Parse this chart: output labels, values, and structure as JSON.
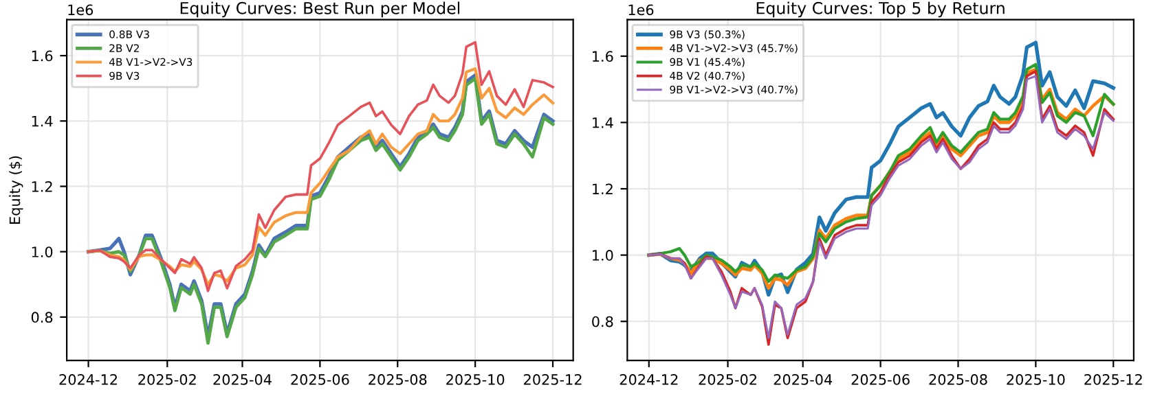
{
  "chart_data": [
    {
      "type": "line",
      "title": "Equity Curves: Best Run per Model",
      "ylabel": "Equity ($)",
      "annotations": [
        "1e6"
      ],
      "grid": true,
      "legend": "top left",
      "x": [
        "2024-12-01",
        "2024-12-10",
        "2024-12-18",
        "2024-12-25",
        "2024-12-29",
        "2025-01-03",
        "2025-01-10",
        "2025-01-15",
        "2025-01-20",
        "2025-01-27",
        "2025-02-03",
        "2025-02-07",
        "2025-02-12",
        "2025-02-19",
        "2025-02-22",
        "2025-02-28",
        "2025-03-05",
        "2025-03-10",
        "2025-03-15",
        "2025-03-20",
        "2025-03-27",
        "2025-04-03",
        "2025-04-09",
        "2025-04-14",
        "2025-04-19",
        "2025-04-26",
        "2025-05-05",
        "2025-05-13",
        "2025-05-22",
        "2025-05-25",
        "2025-06-01",
        "2025-06-08",
        "2025-06-15",
        "2025-06-24",
        "2025-07-03",
        "2025-07-10",
        "2025-07-15",
        "2025-07-20",
        "2025-07-27",
        "2025-08-03",
        "2025-08-10",
        "2025-08-17",
        "2025-08-24",
        "2025-08-29",
        "2025-09-03",
        "2025-09-10",
        "2025-09-15",
        "2025-09-21",
        "2025-09-24",
        "2025-10-01",
        "2025-10-06",
        "2025-10-12",
        "2025-10-18",
        "2025-10-25",
        "2025-11-01",
        "2025-11-08",
        "2025-11-15",
        "2025-11-24",
        "2025-12-01"
      ],
      "xlim": [
        "2024-11-14",
        "2025-12-17"
      ],
      "xticks": [
        {
          "value": "2024-12-01",
          "label": "2024-12"
        },
        {
          "value": "2025-02-01",
          "label": "2025-02"
        },
        {
          "value": "2025-04-01",
          "label": "2025-04"
        },
        {
          "value": "2025-06-01",
          "label": "2025-06"
        },
        {
          "value": "2025-08-01",
          "label": "2025-08"
        },
        {
          "value": "2025-10-01",
          "label": "2025-10"
        },
        {
          "value": "2025-12-01",
          "label": "2025-12"
        }
      ],
      "ylim": [
        0.667,
        1.71
      ],
      "yticks": [
        {
          "value": 0.8,
          "label": "0.8"
        },
        {
          "value": 1.0,
          "label": "1.0"
        },
        {
          "value": 1.2,
          "label": "1.2"
        },
        {
          "value": 1.4,
          "label": "1.4"
        },
        {
          "value": 1.6,
          "label": "1.6"
        }
      ],
      "series": [
        {
          "name": "0.8B V3",
          "color": "#4a72b8",
          "values": [
            1.0,
            1.005,
            1.01,
            1.04,
            1.0,
            0.93,
            0.99,
            1.05,
            1.05,
            0.98,
            0.9,
            0.83,
            0.9,
            0.88,
            0.91,
            0.85,
            0.74,
            0.84,
            0.84,
            0.75,
            0.84,
            0.87,
            0.94,
            1.02,
            0.99,
            1.04,
            1.06,
            1.08,
            1.08,
            1.17,
            1.18,
            1.23,
            1.29,
            1.32,
            1.35,
            1.36,
            1.32,
            1.34,
            1.3,
            1.26,
            1.3,
            1.35,
            1.37,
            1.39,
            1.36,
            1.35,
            1.38,
            1.43,
            1.52,
            1.54,
            1.4,
            1.43,
            1.34,
            1.33,
            1.37,
            1.34,
            1.32,
            1.42,
            1.4
          ]
        },
        {
          "name": "2B V2",
          "color": "#55a84a",
          "values": [
            1.0,
            1.003,
            0.995,
            1.0,
            0.99,
            0.94,
            0.99,
            1.04,
            1.04,
            0.97,
            0.89,
            0.82,
            0.89,
            0.87,
            0.9,
            0.84,
            0.72,
            0.83,
            0.83,
            0.74,
            0.83,
            0.86,
            0.93,
            1.01,
            0.985,
            1.03,
            1.05,
            1.07,
            1.07,
            1.16,
            1.17,
            1.22,
            1.28,
            1.31,
            1.34,
            1.35,
            1.31,
            1.33,
            1.29,
            1.25,
            1.29,
            1.34,
            1.36,
            1.38,
            1.35,
            1.34,
            1.37,
            1.42,
            1.51,
            1.53,
            1.39,
            1.42,
            1.33,
            1.32,
            1.36,
            1.33,
            1.29,
            1.41,
            1.39
          ]
        },
        {
          "name": "4B V1->V2->V3",
          "color": "#f99b3a",
          "values": [
            1.0,
            1.003,
            0.99,
            0.985,
            0.975,
            0.945,
            0.985,
            0.99,
            0.99,
            0.975,
            0.955,
            0.94,
            0.96,
            0.955,
            0.97,
            0.945,
            0.9,
            0.93,
            0.925,
            0.91,
            0.95,
            0.96,
            0.99,
            1.075,
            1.05,
            1.09,
            1.11,
            1.12,
            1.12,
            1.18,
            1.21,
            1.25,
            1.29,
            1.31,
            1.35,
            1.37,
            1.33,
            1.36,
            1.32,
            1.3,
            1.33,
            1.36,
            1.37,
            1.42,
            1.4,
            1.4,
            1.42,
            1.47,
            1.55,
            1.56,
            1.47,
            1.5,
            1.43,
            1.41,
            1.44,
            1.42,
            1.45,
            1.48,
            1.455
          ]
        },
        {
          "name": "9B V3",
          "color": "#e5525a",
          "values": [
            1.0,
            1.004,
            0.984,
            0.98,
            0.97,
            0.95,
            0.99,
            1.005,
            1.005,
            0.977,
            0.95,
            0.935,
            0.977,
            0.963,
            0.983,
            0.95,
            0.88,
            0.935,
            0.942,
            0.888,
            0.956,
            0.977,
            1.004,
            1.114,
            1.073,
            1.127,
            1.168,
            1.175,
            1.175,
            1.264,
            1.285,
            1.333,
            1.388,
            1.415,
            1.443,
            1.456,
            1.415,
            1.429,
            1.388,
            1.36,
            1.415,
            1.45,
            1.463,
            1.511,
            1.477,
            1.456,
            1.477,
            1.545,
            1.627,
            1.641,
            1.511,
            1.552,
            1.477,
            1.45,
            1.497,
            1.443,
            1.525,
            1.518,
            1.504
          ]
        }
      ]
    },
    {
      "type": "line",
      "title": "Equity Curves: Top 5 by Return",
      "annotations": [
        "1e6"
      ],
      "grid": true,
      "legend": "top left",
      "x": [
        "2024-12-01",
        "2024-12-10",
        "2024-12-18",
        "2024-12-25",
        "2024-12-29",
        "2025-01-03",
        "2025-01-10",
        "2025-01-15",
        "2025-01-20",
        "2025-01-27",
        "2025-02-03",
        "2025-02-07",
        "2025-02-12",
        "2025-02-19",
        "2025-02-22",
        "2025-02-28",
        "2025-03-05",
        "2025-03-10",
        "2025-03-15",
        "2025-03-20",
        "2025-03-27",
        "2025-04-03",
        "2025-04-09",
        "2025-04-14",
        "2025-04-19",
        "2025-04-26",
        "2025-05-05",
        "2025-05-13",
        "2025-05-22",
        "2025-05-25",
        "2025-06-01",
        "2025-06-08",
        "2025-06-15",
        "2025-06-24",
        "2025-07-03",
        "2025-07-10",
        "2025-07-15",
        "2025-07-20",
        "2025-07-27",
        "2025-08-03",
        "2025-08-10",
        "2025-08-17",
        "2025-08-24",
        "2025-08-29",
        "2025-09-03",
        "2025-09-10",
        "2025-09-15",
        "2025-09-21",
        "2025-09-24",
        "2025-10-01",
        "2025-10-06",
        "2025-10-12",
        "2025-10-18",
        "2025-10-25",
        "2025-11-01",
        "2025-11-08",
        "2025-11-15",
        "2025-11-24",
        "2025-12-01"
      ],
      "xlim": [
        "2024-11-14",
        "2025-12-17"
      ],
      "xticks": [
        {
          "value": "2024-12-01",
          "label": "2024-12"
        },
        {
          "value": "2025-02-01",
          "label": "2025-02"
        },
        {
          "value": "2025-04-01",
          "label": "2025-04"
        },
        {
          "value": "2025-06-01",
          "label": "2025-06"
        },
        {
          "value": "2025-08-01",
          "label": "2025-08"
        },
        {
          "value": "2025-10-01",
          "label": "2025-10"
        },
        {
          "value": "2025-12-01",
          "label": "2025-12"
        }
      ],
      "ylim": [
        0.682,
        1.71
      ],
      "yticks": [
        {
          "value": 0.8,
          "label": "0.8"
        },
        {
          "value": 1.0,
          "label": "1.0"
        },
        {
          "value": 1.2,
          "label": "1.2"
        },
        {
          "value": 1.4,
          "label": "1.4"
        },
        {
          "value": 1.6,
          "label": "1.6"
        }
      ],
      "series": [
        {
          "name": "9B V3 (50.3%)",
          "color": "#1f77b4",
          "values": [
            1.0,
            1.004,
            0.984,
            0.98,
            0.97,
            0.95,
            0.99,
            1.005,
            1.005,
            0.977,
            0.95,
            0.935,
            0.977,
            0.963,
            0.983,
            0.95,
            0.88,
            0.935,
            0.942,
            0.888,
            0.956,
            0.977,
            1.004,
            1.114,
            1.073,
            1.127,
            1.168,
            1.175,
            1.175,
            1.264,
            1.285,
            1.333,
            1.388,
            1.415,
            1.443,
            1.456,
            1.415,
            1.429,
            1.388,
            1.36,
            1.415,
            1.45,
            1.463,
            1.511,
            1.477,
            1.456,
            1.477,
            1.545,
            1.627,
            1.641,
            1.511,
            1.552,
            1.477,
            1.45,
            1.497,
            1.443,
            1.525,
            1.518,
            1.504
          ]
        },
        {
          "name": "4B V1->V2->V3 (45.7%)",
          "color": "#ff7f0e",
          "values": [
            1.0,
            1.003,
            0.99,
            0.985,
            0.975,
            0.945,
            0.985,
            0.99,
            0.99,
            0.975,
            0.955,
            0.94,
            0.96,
            0.955,
            0.97,
            0.945,
            0.9,
            0.93,
            0.925,
            0.91,
            0.95,
            0.96,
            0.99,
            1.075,
            1.05,
            1.09,
            1.11,
            1.12,
            1.12,
            1.18,
            1.21,
            1.25,
            1.29,
            1.31,
            1.35,
            1.37,
            1.33,
            1.36,
            1.32,
            1.3,
            1.33,
            1.36,
            1.37,
            1.42,
            1.4,
            1.4,
            1.42,
            1.47,
            1.55,
            1.56,
            1.47,
            1.5,
            1.43,
            1.41,
            1.44,
            1.42,
            1.45,
            1.48,
            1.455
          ]
        },
        {
          "name": "9B V1 (45.4%)",
          "color": "#2ca02c",
          "values": [
            1.0,
            1.005,
            1.01,
            1.02,
            1.0,
            0.965,
            0.98,
            1.0,
            0.995,
            0.985,
            0.965,
            0.95,
            0.97,
            0.965,
            0.975,
            0.955,
            0.92,
            0.94,
            0.935,
            0.93,
            0.955,
            0.965,
            0.995,
            1.065,
            1.04,
            1.08,
            1.1,
            1.11,
            1.115,
            1.18,
            1.21,
            1.25,
            1.3,
            1.32,
            1.36,
            1.385,
            1.34,
            1.37,
            1.33,
            1.31,
            1.34,
            1.37,
            1.38,
            1.43,
            1.41,
            1.41,
            1.43,
            1.48,
            1.56,
            1.575,
            1.46,
            1.49,
            1.42,
            1.4,
            1.43,
            1.42,
            1.36,
            1.485,
            1.455
          ]
        },
        {
          "name": "4B V2 (40.7%)",
          "color": "#d62728",
          "values": [
            1.0,
            1.003,
            0.99,
            0.99,
            0.975,
            0.93,
            0.97,
            0.995,
            0.99,
            0.95,
            0.89,
            0.84,
            0.9,
            0.88,
            0.9,
            0.845,
            0.73,
            0.85,
            0.84,
            0.75,
            0.84,
            0.86,
            0.92,
            1.05,
            1.0,
            1.06,
            1.08,
            1.09,
            1.09,
            1.16,
            1.19,
            1.24,
            1.28,
            1.3,
            1.34,
            1.36,
            1.32,
            1.35,
            1.3,
            1.26,
            1.29,
            1.33,
            1.35,
            1.4,
            1.38,
            1.38,
            1.4,
            1.45,
            1.54,
            1.555,
            1.41,
            1.45,
            1.38,
            1.36,
            1.39,
            1.37,
            1.3,
            1.44,
            1.41
          ]
        },
        {
          "name": "9B V1->V2->V3 (40.7%)",
          "color": "#9467bd",
          "values": [
            1.0,
            1.003,
            0.99,
            0.99,
            0.97,
            0.93,
            0.965,
            0.99,
            0.99,
            0.94,
            0.88,
            0.84,
            0.89,
            0.88,
            0.9,
            0.85,
            0.75,
            0.86,
            0.84,
            0.76,
            0.85,
            0.87,
            0.92,
            1.04,
            0.99,
            1.05,
            1.07,
            1.08,
            1.08,
            1.15,
            1.18,
            1.23,
            1.27,
            1.29,
            1.33,
            1.35,
            1.31,
            1.34,
            1.29,
            1.26,
            1.28,
            1.32,
            1.34,
            1.39,
            1.37,
            1.37,
            1.39,
            1.44,
            1.53,
            1.54,
            1.4,
            1.44,
            1.37,
            1.35,
            1.38,
            1.36,
            1.32,
            1.43,
            1.405
          ]
        }
      ]
    }
  ]
}
